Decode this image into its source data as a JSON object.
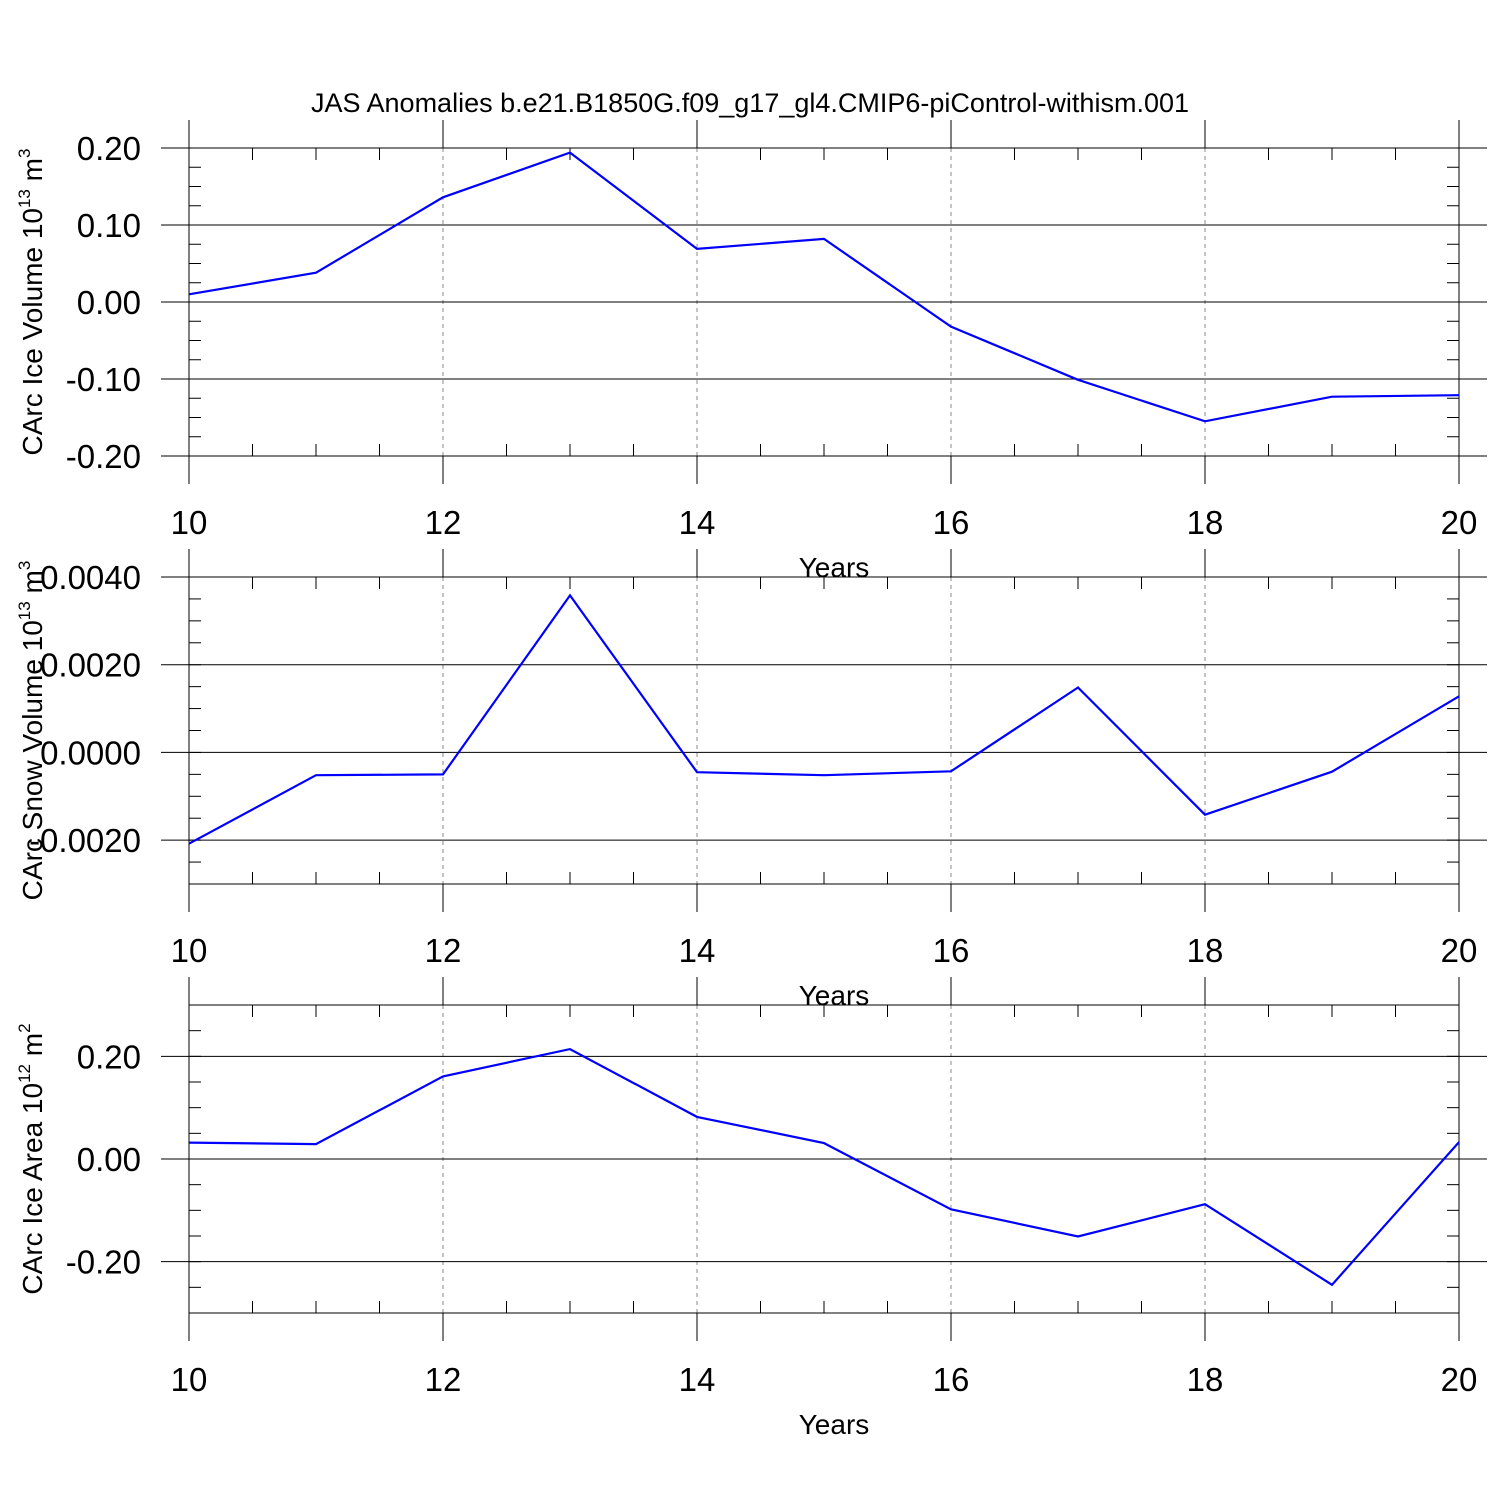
{
  "title": "JAS Anomalies b.e21.B1850G.f09_g17_gl4.CMIP6-piControl-withism.001",
  "colors": {
    "line": "#0000ff",
    "axis": "#000000",
    "grid": "#888888"
  },
  "chart_data": [
    {
      "type": "line",
      "xlabel": "Years",
      "ylabel": "CArc Ice Volume 10",
      "ylabel_sup": "13",
      "ylabel_unit": " m",
      "ylabel_unit_sup": "3",
      "xlim": [
        10,
        20
      ],
      "ylim": [
        -0.2,
        0.2
      ],
      "xticks": [
        "10",
        "12",
        "14",
        "16",
        "18",
        "20"
      ],
      "yticks": [
        "-0.20",
        "-0.10",
        "0.00",
        "0.10",
        "0.20"
      ],
      "grid": "vertical dashed at major x ticks",
      "x": [
        10,
        11,
        12,
        13,
        14,
        15,
        16,
        17,
        18,
        19,
        20
      ],
      "y": [
        0.01,
        0.038,
        0.136,
        0.194,
        0.069,
        0.082,
        -0.032,
        -0.101,
        -0.155,
        -0.123,
        -0.121
      ]
    },
    {
      "type": "line",
      "xlabel": "Years",
      "ylabel": "CArc Snow Volume 10",
      "ylabel_sup": "13",
      "ylabel_unit": " m",
      "ylabel_unit_sup": "3",
      "xlim": [
        10,
        20
      ],
      "ylim": [
        -0.003,
        0.004
      ],
      "xticks": [
        "10",
        "12",
        "14",
        "16",
        "18",
        "20"
      ],
      "yticks": [
        "-0.0020",
        "0.0000",
        "0.0020",
        "0.0040"
      ],
      "grid": "vertical dashed at major x ticks",
      "x": [
        10,
        11,
        12,
        13,
        14,
        15,
        16,
        17,
        18,
        19,
        20
      ],
      "y": [
        -0.00208,
        -0.00052,
        -0.0005,
        0.00358,
        -0.00045,
        -0.00052,
        -0.00043,
        0.00148,
        -0.00142,
        -0.00044,
        0.00128
      ]
    },
    {
      "type": "line",
      "xlabel": "Years",
      "ylabel": "CArc Ice Area 10",
      "ylabel_sup": "12",
      "ylabel_unit": " m",
      "ylabel_unit_sup": "2",
      "xlim": [
        10,
        20
      ],
      "ylim": [
        -0.3,
        0.3
      ],
      "xticks": [
        "10",
        "12",
        "14",
        "16",
        "18",
        "20"
      ],
      "yticks": [
        "-0.20",
        "0.00",
        "0.20"
      ],
      "grid": "vertical dashed at major x ticks",
      "x": [
        10,
        11,
        12,
        13,
        14,
        15,
        16,
        17,
        18,
        19,
        20
      ],
      "y": [
        0.032,
        0.029,
        0.161,
        0.214,
        0.082,
        0.031,
        -0.098,
        -0.151,
        -0.088,
        -0.245,
        0.033
      ]
    }
  ]
}
